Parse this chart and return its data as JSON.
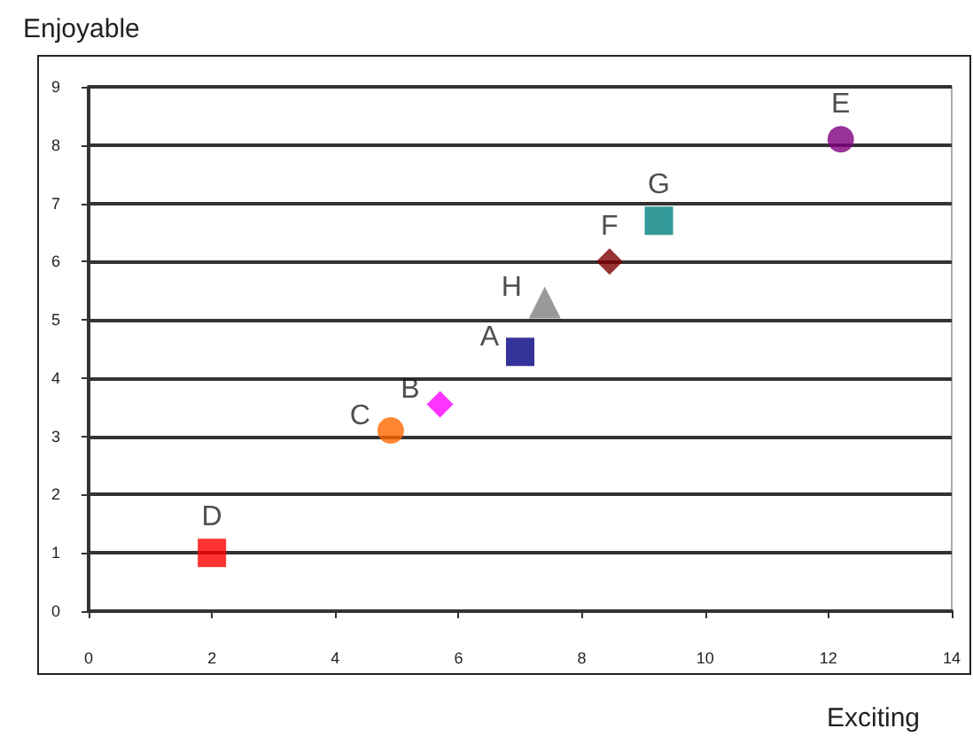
{
  "chart_data": {
    "type": "scatter",
    "xlabel": "Exciting",
    "ylabel": "Enjoyable",
    "xlim": [
      0,
      14
    ],
    "xticks": [
      0,
      2,
      4,
      6,
      8,
      10,
      12,
      14
    ],
    "ylim": [
      0,
      9
    ],
    "yticks": [
      0,
      1,
      2,
      3,
      4,
      5,
      6,
      7,
      8,
      9
    ],
    "grid": "y",
    "legend": false,
    "series": [
      {
        "name": "A",
        "color": "#000080",
        "marker": "square",
        "x": [
          7.0
        ],
        "values": [
          4.45
        ]
      },
      {
        "name": "B",
        "color": "#ff00ff",
        "marker": "diamond",
        "x": [
          5.7
        ],
        "values": [
          3.55
        ]
      },
      {
        "name": "C",
        "color": "#ff6600",
        "marker": "circle",
        "x": [
          4.9
        ],
        "values": [
          3.1
        ]
      },
      {
        "name": "D",
        "color": "#ff0000",
        "marker": "square",
        "x": [
          2.0
        ],
        "values": [
          1.0
        ]
      },
      {
        "name": "E",
        "color": "#800080",
        "marker": "circle",
        "x": [
          12.2
        ],
        "values": [
          8.1
        ]
      },
      {
        "name": "F",
        "color": "#800000",
        "marker": "diamond",
        "x": [
          8.45
        ],
        "values": [
          6.0
        ]
      },
      {
        "name": "G",
        "color": "#008080",
        "marker": "square",
        "x": [
          9.25
        ],
        "values": [
          6.7
        ]
      },
      {
        "name": "H",
        "color": "#808080",
        "marker": "triangle",
        "x": [
          7.4
        ],
        "values": [
          5.3
        ]
      }
    ]
  }
}
